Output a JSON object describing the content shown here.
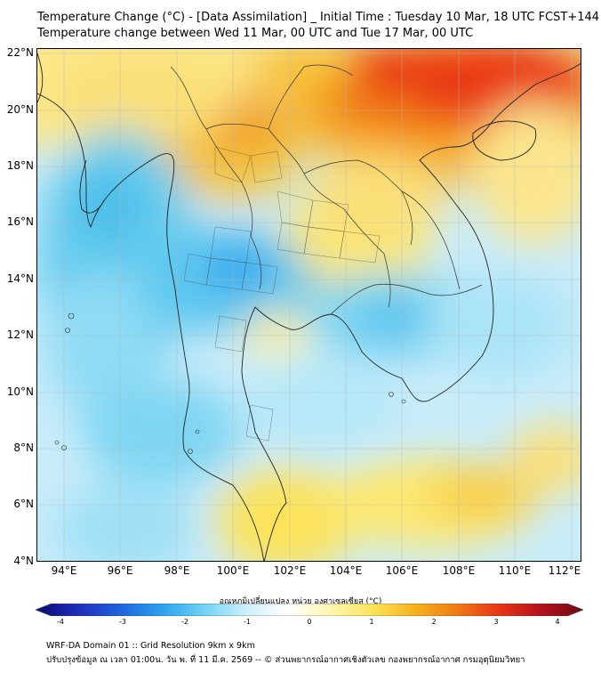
{
  "title_line1": "Temperature Change (°C) - [Data Assimilation] _ Initial Time : Tuesday 10 Mar, 18 UTC FCST+144",
  "title_line2": "Temperature change between Wed 11 Mar, 00 UTC and Tue 17 Mar, 00 UTC",
  "lat_labels": [
    "22°N",
    "20°N",
    "18°N",
    "16°N",
    "14°N",
    "12°N",
    "10°N",
    "8°N",
    "6°N",
    "4°N"
  ],
  "lon_labels": [
    "94°E",
    "96°E",
    "98°E",
    "100°E",
    "102°E",
    "104°E",
    "106°E",
    "108°E",
    "110°E",
    "112°E"
  ],
  "colorbar": {
    "title": "อุณหภูมิเปลี่ยนแปลง หน่วย องศาเซลเซียส (°C)",
    "ticks": [
      "-4",
      "-3",
      "-2",
      "-1",
      "0",
      "1",
      "2",
      "3",
      "4"
    ],
    "colors": [
      "#0a0a6e",
      "#1f2dbb",
      "#1e63e0",
      "#2aa3ee",
      "#6fd3f5",
      "#cdeefb",
      "#ffffff",
      "#fff6b0",
      "#fde35a",
      "#f6b21d",
      "#f07a12",
      "#e93414",
      "#b5101a",
      "#6d0a14"
    ]
  },
  "footer_line1": "WRF-DA Domain 01 :: Grid Resolution 9km x 9km",
  "footer_line2": "ปรับปรุงข้อมูล ณ เวลา 01:00น. วัน พ. ที่ 11 มี.ค. 2569 -- © ส่วนพยากรณ์อากาศเชิงตัวเลข กองพยากรณ์อากาศ กรมอุตุนิยมวิทยา"
}
